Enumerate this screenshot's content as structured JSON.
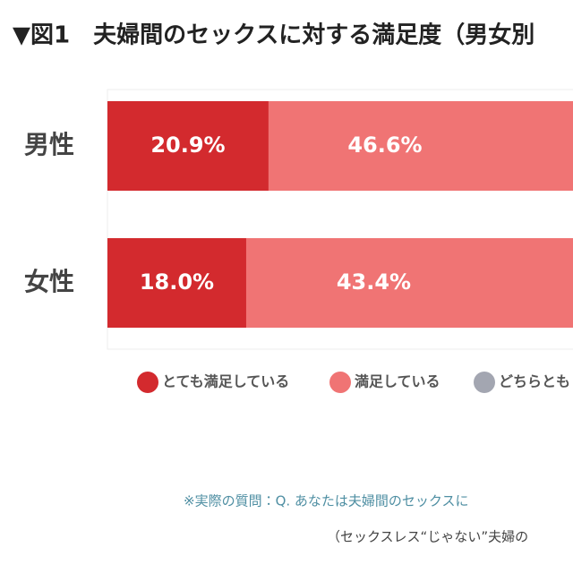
{
  "chart_data": {
    "type": "stacked_bar_horizontal",
    "title": "▼図1　夫婦間のセックスに対する満足度（男女別",
    "categories": [
      "男性",
      "女性"
    ],
    "series": [
      {
        "name": "とても満足している",
        "color": "#d32a2e",
        "values": [
          20.9,
          18.0
        ],
        "value_labels": [
          "20.9%",
          "18.0%"
        ]
      },
      {
        "name": "満足している",
        "color": "#f07474",
        "values": [
          46.6,
          43.4
        ],
        "value_labels": [
          "46.6%",
          "43.4%"
        ]
      },
      {
        "name": "どちらとも",
        "color": "#a3a6b1",
        "values": [
          null,
          null
        ]
      }
    ],
    "xlim": [
      0,
      100
    ],
    "notes": [
      "※実際の質問：Q. あなたは夫婦間のセックスに",
      "（セックスレス“じゃない”夫婦の"
    ]
  }
}
